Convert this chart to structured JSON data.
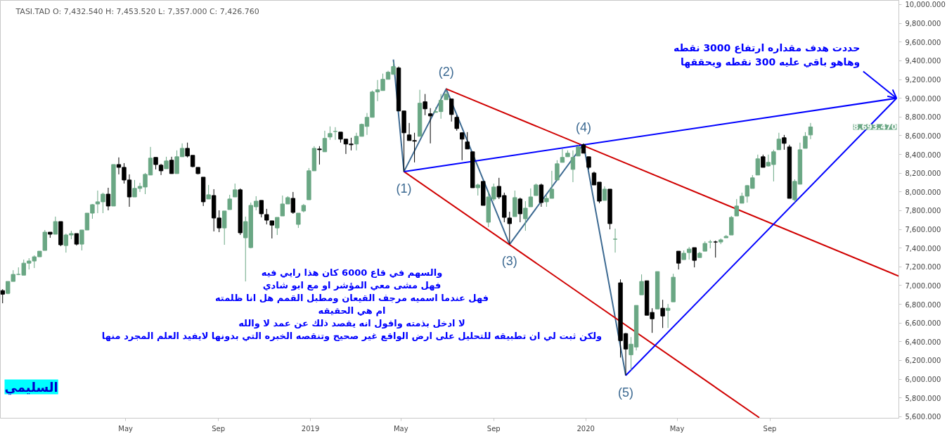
{
  "chart_data": {
    "type": "candlestick",
    "title": "TASI.TAD    O: 7,432.540  H: 7,453.520  L: 7,357.000  C: 7,426.760",
    "xlim": [
      "2017-11-16",
      "2021-02-19"
    ],
    "ylim": [
      5584,
      10045
    ],
    "xticks": [
      {
        "value": "2018-05-01",
        "label": "May"
      },
      {
        "value": "2018-09-01",
        "label": "Sep"
      },
      {
        "value": "2019-01-01",
        "label": "2019"
      },
      {
        "value": "2019-05-01",
        "label": "May"
      },
      {
        "value": "2019-09-01",
        "label": "Sep"
      },
      {
        "value": "2020-01-01",
        "label": "2020"
      },
      {
        "value": "2020-05-01",
        "label": "May"
      },
      {
        "value": "2020-09-01",
        "label": "Sep"
      }
    ],
    "yticks": [
      {
        "value": 5600,
        "label": "5,600.000"
      },
      {
        "value": 5800,
        "label": "5,800.000"
      },
      {
        "value": 6000,
        "label": "6,000.000"
      },
      {
        "value": 6200,
        "label": "6,200.000"
      },
      {
        "value": 6400,
        "label": "6,400.000"
      },
      {
        "value": 6600,
        "label": "6,600.000"
      },
      {
        "value": 6800,
        "label": "6,800.000"
      },
      {
        "value": 7000,
        "label": "7,000.000"
      },
      {
        "value": 7200,
        "label": "7,200.000"
      },
      {
        "value": 7400,
        "label": "7,400.000"
      },
      {
        "value": 7600,
        "label": "7,600.000"
      },
      {
        "value": 7800,
        "label": "7,800.000"
      },
      {
        "value": 8000,
        "label": "8,000.000"
      },
      {
        "value": 8200,
        "label": "8,200.000"
      },
      {
        "value": 8400,
        "label": "8,400.000"
      },
      {
        "value": 8600,
        "label": "8,600.000"
      },
      {
        "value": 8800,
        "label": "8,800.000"
      },
      {
        "value": 9000,
        "label": "9,000.000"
      },
      {
        "value": 9200,
        "label": "9,200.000"
      },
      {
        "value": 9400,
        "label": "9,400.000"
      },
      {
        "value": 9600,
        "label": "9,600.000"
      },
      {
        "value": 9800,
        "label": "9,800.000"
      },
      {
        "value": 10000,
        "label": "10,000.000"
      }
    ],
    "grid": false,
    "series": [
      {
        "type": "line",
        "color": "#3d6a92",
        "x": [
          "2019-04-21",
          "2019-05-05",
          "2019-06-30",
          "2019-09-22",
          "2019-12-29",
          "2020-02-23"
        ],
        "values": [
          9413,
          8217,
          9100,
          7440,
          8511,
          6040
        ]
      },
      {
        "type": "line",
        "color": "#d00000",
        "x": [
          "2019-06-30",
          "2021-02-19"
        ],
        "values": [
          9100,
          7100
        ]
      },
      {
        "type": "line",
        "color": "#d00000",
        "x": [
          "2019-05-05",
          "2020-08-18"
        ],
        "values": [
          8217,
          5590
        ]
      },
      {
        "type": "line",
        "color": "#0000ff",
        "x": [
          "2019-05-05",
          "2021-02-16"
        ],
        "values": [
          8217,
          9000
        ]
      },
      {
        "type": "line",
        "color": "#0000ff",
        "x": [
          "2020-02-23",
          "2021-02-16"
        ],
        "values": [
          6040,
          9000
        ]
      },
      {
        "x": [
          "2017-11-19",
          "2017-11-26",
          "2017-12-03",
          "2017-12-10",
          "2017-12-17",
          "2017-12-24",
          "2017-12-31",
          "2018-01-07",
          "2018-01-14",
          "2018-01-21",
          "2018-01-28",
          "2018-02-04",
          "2018-02-11",
          "2018-02-18",
          "2018-02-25",
          "2018-03-04",
          "2018-03-11",
          "2018-03-18",
          "2018-03-25",
          "2018-04-01",
          "2018-04-08",
          "2018-04-15",
          "2018-04-22",
          "2018-04-29",
          "2018-05-06",
          "2018-05-13",
          "2018-05-20",
          "2018-05-27",
          "2018-06-03",
          "2018-06-10",
          "2018-06-17",
          "2018-06-24",
          "2018-07-01",
          "2018-07-08",
          "2018-07-15",
          "2018-07-22",
          "2018-07-29",
          "2018-08-05",
          "2018-08-12",
          "2018-08-19",
          "2018-08-26",
          "2018-09-02",
          "2018-09-09",
          "2018-09-16",
          "2018-09-23",
          "2018-09-30",
          "2018-10-07",
          "2018-10-14",
          "2018-10-21",
          "2018-10-28",
          "2018-11-04",
          "2018-11-11",
          "2018-11-18",
          "2018-11-25",
          "2018-12-02",
          "2018-12-09",
          "2018-12-16",
          "2018-12-23",
          "2018-12-30",
          "2019-01-06",
          "2019-01-13",
          "2019-01-20",
          "2019-01-27",
          "2019-02-03",
          "2019-02-10",
          "2019-02-17",
          "2019-02-24",
          "2019-03-03",
          "2019-03-10",
          "2019-03-17",
          "2019-03-24",
          "2019-03-31",
          "2019-04-07",
          "2019-04-14",
          "2019-04-21",
          "2019-04-28",
          "2019-05-05",
          "2019-05-12",
          "2019-05-19",
          "2019-05-26",
          "2019-06-02",
          "2019-06-09",
          "2019-06-16",
          "2019-06-23",
          "2019-06-30",
          "2019-07-07",
          "2019-07-14",
          "2019-07-21",
          "2019-07-28",
          "2019-08-04",
          "2019-08-11",
          "2019-08-18",
          "2019-08-25",
          "2019-09-01",
          "2019-09-08",
          "2019-09-15",
          "2019-09-22",
          "2019-09-29",
          "2019-10-06",
          "2019-10-13",
          "2019-10-20",
          "2019-10-27",
          "2019-11-03",
          "2019-11-10",
          "2019-11-17",
          "2019-11-24",
          "2019-12-01",
          "2019-12-08",
          "2019-12-15",
          "2019-12-22",
          "2019-12-29",
          "2020-01-05",
          "2020-01-12",
          "2020-01-19",
          "2020-01-26",
          "2020-02-02",
          "2020-02-09",
          "2020-02-16",
          "2020-02-23",
          "2020-03-01",
          "2020-03-08",
          "2020-03-15",
          "2020-03-22",
          "2020-03-29",
          "2020-04-05",
          "2020-04-12",
          "2020-04-19",
          "2020-04-26",
          "2020-05-03",
          "2020-05-10",
          "2020-05-17",
          "2020-05-24",
          "2020-05-31",
          "2020-06-07",
          "2020-06-14",
          "2020-06-21",
          "2020-06-28",
          "2020-07-05",
          "2020-07-12",
          "2020-07-19",
          "2020-07-26",
          "2020-08-02",
          "2020-08-09",
          "2020-08-16",
          "2020-08-23",
          "2020-08-30",
          "2020-09-06",
          "2020-09-13",
          "2020-09-20",
          "2020-09-27",
          "2020-10-04",
          "2020-10-11",
          "2020-10-18",
          "2020-10-25"
        ],
        "ohlc": [
          [
            6946,
            6961,
            6811,
            6908
          ],
          [
            6916,
            7044,
            6908,
            7044
          ],
          [
            7044,
            7164,
            7044,
            7119
          ],
          [
            7119,
            7194,
            7111,
            7119
          ],
          [
            7111,
            7277,
            7111,
            7239
          ],
          [
            7239,
            7292,
            7172,
            7262
          ],
          [
            7262,
            7322,
            7187,
            7307
          ],
          [
            7307,
            7367,
            7307,
            7367
          ],
          [
            7375,
            7593,
            7375,
            7570
          ],
          [
            7570,
            7570,
            7510,
            7548
          ],
          [
            7548,
            7736,
            7548,
            7683
          ],
          [
            7683,
            7683,
            7420,
            7435
          ],
          [
            7427,
            7555,
            7352,
            7540
          ],
          [
            7540,
            7585,
            7495,
            7555
          ],
          [
            7555,
            7555,
            7427,
            7442
          ],
          [
            7442,
            7593,
            7375,
            7593
          ],
          [
            7593,
            7773,
            7593,
            7773
          ],
          [
            7773,
            7871,
            7713,
            7864
          ],
          [
            7871,
            8014,
            7773,
            7894
          ],
          [
            7894,
            7992,
            7773,
            7976
          ],
          [
            7976,
            8044,
            7803,
            7849
          ],
          [
            7849,
            8292,
            7849,
            8292
          ],
          [
            8292,
            8368,
            8187,
            8262
          ],
          [
            8262,
            8307,
            8089,
            8127
          ],
          [
            8127,
            8187,
            7841,
            7946
          ],
          [
            7946,
            8127,
            7946,
            8037
          ],
          [
            8037,
            8097,
            7999,
            8059
          ],
          [
            8052,
            8202,
            7976,
            8187
          ],
          [
            8180,
            8480,
            8180,
            8360
          ],
          [
            8368,
            8368,
            8240,
            8292
          ],
          [
            8285,
            8300,
            8180,
            8225
          ],
          [
            8247,
            8375,
            8247,
            8330
          ],
          [
            8338,
            8375,
            8195,
            8195
          ],
          [
            8195,
            8443,
            8195,
            8375
          ],
          [
            8375,
            8518,
            8375,
            8465
          ],
          [
            8465,
            8526,
            8368,
            8383
          ],
          [
            8390,
            8390,
            8262,
            8270
          ],
          [
            8262,
            8262,
            8187,
            8195
          ],
          [
            8157,
            8157,
            7849,
            7894
          ],
          [
            7924,
            8074,
            7924,
            7969
          ],
          [
            7961,
            8029,
            7578,
            7721
          ],
          [
            7721,
            7803,
            7570,
            7615
          ],
          [
            7615,
            7796,
            7435,
            7796
          ],
          [
            7811,
            7969,
            7811,
            7924
          ],
          [
            7946,
            8089,
            7946,
            8022
          ],
          [
            8022,
            8037,
            7540,
            7563
          ],
          [
            7510,
            7736,
            7044,
            7683
          ],
          [
            7405,
            7886,
            7397,
            7856
          ],
          [
            7841,
            7954,
            7803,
            7901
          ],
          [
            7909,
            7909,
            7728,
            7766
          ],
          [
            7758,
            7819,
            7653,
            7698
          ],
          [
            7691,
            7691,
            7503,
            7645
          ],
          [
            7615,
            7728,
            7540,
            7728
          ],
          [
            7743,
            7961,
            7743,
            7871
          ],
          [
            7871,
            7954,
            7871,
            7939
          ],
          [
            7931,
            7999,
            7766,
            7781
          ],
          [
            7653,
            7773,
            7615,
            7773
          ],
          [
            7796,
            7871,
            7781,
            7856
          ],
          [
            7916,
            8255,
            7916,
            8225
          ],
          [
            8225,
            8488,
            8225,
            8465
          ],
          [
            8458,
            8488,
            8292,
            8450
          ],
          [
            8428,
            8653,
            8428,
            8571
          ],
          [
            8586,
            8699,
            8556,
            8623
          ],
          [
            8646,
            8691,
            8556,
            8646
          ],
          [
            8638,
            8638,
            8526,
            8563
          ],
          [
            8563,
            8563,
            8405,
            8511
          ],
          [
            8511,
            8578,
            8443,
            8503
          ],
          [
            8511,
            8631,
            8443,
            8593
          ],
          [
            8593,
            8729,
            8593,
            8721
          ],
          [
            8699,
            8842,
            8608,
            8796
          ],
          [
            8796,
            9082,
            8796,
            9067
          ],
          [
            9067,
            9195,
            8969,
            9090
          ],
          [
            9082,
            9263,
            9082,
            9202
          ],
          [
            9202,
            9293,
            9202,
            9278
          ],
          [
            9255,
            9383,
            9255,
            9338
          ],
          [
            9323,
            9338,
            8864,
            8864
          ],
          [
            8864,
            8864,
            8217,
            8631
          ],
          [
            8608,
            8736,
            8548,
            8548
          ],
          [
            8548,
            8631,
            8315,
            8541
          ],
          [
            8593,
            9090,
            8593,
            8947
          ],
          [
            8962,
            9045,
            8819,
            8887
          ],
          [
            8834,
            8894,
            8518,
            8811
          ],
          [
            8849,
            8902,
            8849,
            8857
          ],
          [
            8857,
            9045,
            8781,
            8977
          ],
          [
            8984,
            9082,
            8984,
            9045
          ],
          [
            8992,
            8992,
            8751,
            8826
          ],
          [
            8796,
            8819,
            8653,
            8676
          ],
          [
            8631,
            8638,
            8338,
            8563
          ],
          [
            8533,
            8638,
            8458,
            8458
          ],
          [
            8428,
            8428,
            8044,
            8044
          ],
          [
            8044,
            8089,
            7961,
            8074
          ],
          [
            8112,
            8112,
            7856,
            7856
          ],
          [
            7676,
            8014,
            7623,
            7946
          ],
          [
            7924,
            8089,
            7901,
            8052
          ],
          [
            8059,
            8150,
            7924,
            7946
          ],
          [
            7961,
            7992,
            7676,
            7728
          ],
          [
            7721,
            7788,
            7440,
            7661
          ],
          [
            7736,
            8014,
            7736,
            7939
          ],
          [
            7924,
            7939,
            7676,
            7766
          ],
          [
            7713,
            7901,
            7585,
            7826
          ],
          [
            7841,
            8037,
            7841,
            7946
          ],
          [
            7961,
            8089,
            7961,
            8074
          ],
          [
            8074,
            8089,
            7841,
            7886
          ],
          [
            7894,
            7961,
            7841,
            7931
          ],
          [
            7931,
            8225,
            7931,
            8029
          ],
          [
            8127,
            8338,
            8127,
            8300
          ],
          [
            8315,
            8458,
            8315,
            8368
          ],
          [
            8375,
            8443,
            8375,
            8413
          ],
          [
            8240,
            8443,
            8104,
            8368
          ],
          [
            8383,
            8503,
            8383,
            8480
          ],
          [
            8503,
            8511,
            8413,
            8413
          ],
          [
            8375,
            8375,
            8240,
            8262
          ],
          [
            8202,
            8217,
            8074,
            8074
          ],
          [
            8104,
            8104,
            7879,
            7901
          ],
          [
            7909,
            8059,
            7909,
            8029
          ],
          [
            8029,
            8029,
            7600,
            7661
          ],
          [
            7495,
            7608,
            7352,
            7495
          ],
          [
            7029,
            7066,
            6231,
            6412
          ],
          [
            6487,
            6495,
            6040,
            6322
          ],
          [
            6261,
            6450,
            6096,
            6374
          ],
          [
            6344,
            6788,
            6307,
            6788
          ],
          [
            6901,
            7119,
            6901,
            7044
          ],
          [
            7051,
            7051,
            6683,
            6683
          ],
          [
            6713,
            6758,
            6495,
            6645
          ],
          [
            6750,
            7149,
            6750,
            7149
          ],
          [
            6758,
            6848,
            6547,
            6675
          ],
          [
            6735,
            6803,
            6547,
            6758
          ],
          [
            6826,
            7126,
            6826,
            7089
          ],
          [
            7367,
            7367,
            7172,
            7239
          ],
          [
            7277,
            7375,
            7277,
            7345
          ],
          [
            7352,
            7412,
            7277,
            7390
          ],
          [
            7405,
            7405,
            7194,
            7269
          ],
          [
            7299,
            7360,
            7299,
            7345
          ],
          [
            7367,
            7472,
            7367,
            7450
          ],
          [
            7465,
            7488,
            7397,
            7465
          ],
          [
            7465,
            7480,
            7299,
            7465
          ],
          [
            7465,
            7503,
            7442,
            7488
          ],
          [
            7510,
            7540,
            7510,
            7525
          ],
          [
            7540,
            7743,
            7540,
            7728
          ],
          [
            7743,
            7924,
            7743,
            7849
          ],
          [
            7879,
            7992,
            7879,
            7954
          ],
          [
            7954,
            8074,
            7886,
            8067
          ],
          [
            8037,
            8180,
            8037,
            8150
          ],
          [
            8180,
            8398,
            8180,
            8353
          ],
          [
            8375,
            8398,
            8262,
            8262
          ],
          [
            8277,
            8398,
            8270,
            8315
          ],
          [
            8292,
            8450,
            8112,
            8428
          ],
          [
            8450,
            8631,
            8450,
            8563
          ],
          [
            8578,
            8608,
            8450,
            8518
          ],
          [
            8480,
            8503,
            7931,
            7931
          ],
          [
            7916,
            8134,
            7886,
            8112
          ],
          [
            8082,
            8526,
            8082,
            8450
          ],
          [
            8465,
            8638,
            8465,
            8593
          ],
          [
            8608,
            8736,
            8563,
            8693.47
          ]
        ],
        "colors": [
          "#000000",
          "#6aa784",
          "#6aa784",
          "#6aa784",
          "#6aa784",
          "#6aa784",
          "#6aa784",
          "#6aa784",
          "#6aa784",
          "#000000",
          "#6aa784",
          "#000000",
          "#6aa784",
          "#6aa784",
          "#000000",
          "#6aa784",
          "#6aa784",
          "#6aa784",
          "#6aa784",
          "#6aa784",
          "#000000",
          "#6aa784",
          "#000000",
          "#000000",
          "#000000",
          "#6aa784",
          "#6aa784",
          "#6aa784",
          "#6aa784",
          "#000000",
          "#000000",
          "#6aa784",
          "#000000",
          "#6aa784",
          "#6aa784",
          "#000000",
          "#000000",
          "#000000",
          "#000000",
          "#6aa784",
          "#000000",
          "#000000",
          "#6aa784",
          "#6aa784",
          "#6aa784",
          "#000000",
          "#6aa784",
          "#6aa784",
          "#6aa784",
          "#000000",
          "#000000",
          "#000000",
          "#6aa784",
          "#6aa784",
          "#6aa784",
          "#000000",
          "#6aa784",
          "#6aa784",
          "#6aa784",
          "#6aa784",
          "#000000",
          "#6aa784",
          "#6aa784",
          "#6aa784",
          "#000000",
          "#000000",
          "#000000",
          "#6aa784",
          "#6aa784",
          "#6aa784",
          "#6aa784",
          "#6aa784",
          "#6aa784",
          "#6aa784",
          "#6aa784",
          "#000000",
          "#000000",
          "#000000",
          "#000000",
          "#6aa784",
          "#000000",
          "#000000",
          "#6aa784",
          "#6aa784",
          "#6aa784",
          "#000000",
          "#000000",
          "#000000",
          "#000000",
          "#000000",
          "#6aa784",
          "#000000",
          "#6aa784",
          "#6aa784",
          "#000000",
          "#000000",
          "#000000",
          "#6aa784",
          "#000000",
          "#6aa784",
          "#6aa784",
          "#6aa784",
          "#000000",
          "#6aa784",
          "#6aa784",
          "#6aa784",
          "#6aa784",
          "#6aa784",
          "#6aa784",
          "#6aa784",
          "#000000",
          "#000000",
          "#000000",
          "#000000",
          "#6aa784",
          "#000000",
          "#6aa784",
          "#000000",
          "#000000",
          "#6aa784",
          "#6aa784",
          "#6aa784",
          "#000000",
          "#000000",
          "#6aa784",
          "#000000",
          "#6aa784",
          "#6aa784",
          "#000000",
          "#6aa784",
          "#6aa784",
          "#000000",
          "#6aa784",
          "#6aa784",
          "#6aa784",
          "#000000",
          "#6aa784",
          "#6aa784",
          "#6aa784",
          "#6aa784",
          "#6aa784",
          "#6aa784",
          "#6aa784",
          "#6aa784",
          "#000000",
          "#6aa784",
          "#6aa784",
          "#6aa784",
          "#000000",
          "#000000",
          "#6aa784",
          "#6aa784",
          "#6aa784",
          "#6aa784"
        ]
      }
    ],
    "annotations": [
      {
        "text": "(1)",
        "x": "2019-05-05",
        "y": 8217
      },
      {
        "text": "(2)",
        "x": "2019-06-30",
        "y": 9100
      },
      {
        "text": "(3)",
        "x": "2019-09-22",
        "y": 7440
      },
      {
        "text": "(4)",
        "x": "2019-12-29",
        "y": 8511
      },
      {
        "text": "(5)",
        "x": "2020-02-23",
        "y": 6040
      },
      {
        "text": "حددت هدف مقداره ارتفاع 3000 نقطه\nوهاهو باقي عليه 300 نقطه ويحققها",
        "x": "2021-02-16",
        "y": 9000
      },
      "8,693.470",
      "والسهم في قاع 6000 كان هذا رايي فيه\nفهل مشى معي المؤشر او مع ابو شادي\nفهل عندما اسميه مرجف القيعان ومطبل القمم هل انا ظلمته\nام هي الحقيقه\nلا ادخل بذمته واقول انه يقصد ذلك عن عمد لا والله\nولكن ثبت لي ان تطبيقه للتحليل على ارض الواقع غير صحيح وتنقصه الخبره التي بدونها لايفيد العلم المجرد منها",
      "السليمي"
    ]
  }
}
